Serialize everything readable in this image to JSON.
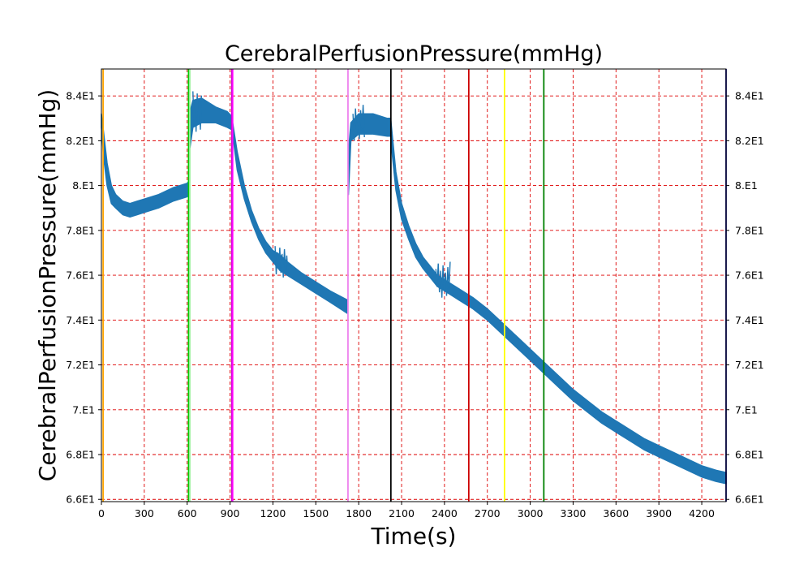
{
  "chart_data": {
    "type": "line",
    "title": "CerebralPerfusionPressure(mmHg)",
    "xlabel": "Time(s)",
    "ylabel": "CerebralPerfusionPressure(mmHg)",
    "xlim": [
      0,
      4370
    ],
    "ylim": [
      65.9,
      85.2
    ],
    "grid": true,
    "x_ticks": [
      0,
      300,
      600,
      900,
      1200,
      1500,
      1800,
      2100,
      2400,
      2700,
      3000,
      3300,
      3600,
      3900,
      4200
    ],
    "x_tick_labels": [
      "0",
      "300",
      "600",
      "900",
      "1200",
      "1500",
      "1800",
      "2100",
      "2400",
      "2700",
      "3000",
      "3300",
      "3600",
      "3900",
      "4200"
    ],
    "y_ticks": [
      66,
      68,
      70,
      72,
      74,
      76,
      78,
      80,
      82,
      84
    ],
    "y_tick_labels": [
      "6.6E1",
      "6.8E1",
      "7.E1",
      "7.2E1",
      "7.4E1",
      "7.6E1",
      "7.8E1",
      "8.E1",
      "8.2E1",
      "8.4E1"
    ],
    "event_lines": [
      {
        "x": 12,
        "color": "#ffa500"
      },
      {
        "x": 610,
        "color": "#00cc00"
      },
      {
        "x": 618,
        "color": "#90ee90"
      },
      {
        "x": 912,
        "color": "#cc00cc"
      },
      {
        "x": 918,
        "color": "#ff00ff"
      },
      {
        "x": 1725,
        "color": "#ee82ee"
      },
      {
        "x": 2025,
        "color": "#000000"
      },
      {
        "x": 2570,
        "color": "#cc0000"
      },
      {
        "x": 2820,
        "color": "#ffff00"
      },
      {
        "x": 3095,
        "color": "#008000"
      }
    ],
    "series": [
      {
        "color": "#1f77b4",
        "segments": [
          {
            "x": [
              0,
              15,
              40,
              70,
              100,
              150,
              200,
              250,
              300,
              400,
              500,
              600,
              612
            ],
            "low": [
              82.6,
              81.3,
              80.0,
              79.2,
              79.0,
              78.7,
              78.6,
              78.7,
              78.8,
              79.0,
              79.3,
              79.5,
              79.6
            ],
            "high": [
              83.2,
              82.4,
              81.0,
              80.0,
              79.6,
              79.3,
              79.2,
              79.3,
              79.4,
              79.6,
              79.9,
              80.1,
              80.2
            ]
          },
          {
            "x": [
              620,
              640,
              700,
              800,
              880,
              910
            ],
            "low": [
              81.7,
              82.6,
              82.8,
              82.8,
              82.6,
              82.5
            ],
            "high": [
              83.3,
              83.8,
              83.9,
              83.5,
              83.3,
              83.1
            ]
          },
          {
            "x": [
              918,
              950,
              1000,
              1050,
              1100,
              1150,
              1200,
              1250,
              1300,
              1400,
              1500,
              1600,
              1720
            ],
            "low": [
              82.3,
              80.7,
              79.4,
              78.4,
              77.6,
              77.0,
              76.6,
              76.2,
              76.0,
              75.6,
              75.2,
              74.8,
              74.3
            ],
            "high": [
              82.8,
              81.5,
              80.0,
              78.9,
              78.1,
              77.5,
              77.1,
              76.9,
              76.6,
              76.1,
              75.7,
              75.3,
              74.9
            ]
          },
          {
            "x": [
              1728,
              1745,
              1800,
              1900,
              2000,
              2020
            ],
            "low": [
              79.6,
              82.0,
              82.3,
              82.3,
              82.2,
              82.2
            ],
            "high": [
              81.5,
              82.8,
              83.2,
              83.2,
              83.0,
              83.0
            ]
          },
          {
            "x": [
              2025,
              2060,
              2100,
              2150,
              2200,
              2250,
              2300,
              2350,
              2400,
              2450,
              2500,
              2600,
              2700,
              2800,
              2900,
              3000,
              3100,
              3200,
              3300,
              3400,
              3500,
              3600,
              3700,
              3800,
              3900,
              4000,
              4100,
              4200,
              4300,
              4370
            ],
            "low": [
              82.0,
              79.8,
              78.5,
              77.6,
              76.8,
              76.3,
              75.9,
              75.5,
              75.3,
              75.1,
              74.9,
              74.5,
              74.0,
              73.4,
              72.8,
              72.2,
              71.6,
              71.0,
              70.4,
              69.9,
              69.4,
              69.0,
              68.6,
              68.2,
              67.9,
              67.6,
              67.3,
              67.0,
              66.8,
              66.7
            ],
            "high": [
              82.9,
              80.6,
              79.2,
              78.2,
              77.4,
              76.8,
              76.4,
              76.0,
              75.8,
              75.6,
              75.4,
              75.0,
              74.5,
              73.9,
              73.3,
              72.7,
              72.1,
              71.5,
              70.9,
              70.4,
              69.9,
              69.5,
              69.1,
              68.7,
              68.4,
              68.1,
              67.8,
              67.5,
              67.3,
              67.2
            ]
          }
        ],
        "noise_bursts": [
          {
            "x0": 1215,
            "x1": 1305,
            "low": 75.9,
            "high": 77.3
          },
          {
            "x0": 2340,
            "x1": 2440,
            "low": 75.0,
            "high": 76.6
          },
          {
            "x0": 640,
            "x1": 700,
            "low": 82.4,
            "high": 84.3
          },
          {
            "x0": 1760,
            "x1": 1840,
            "low": 82.0,
            "high": 83.6
          }
        ]
      }
    ]
  }
}
